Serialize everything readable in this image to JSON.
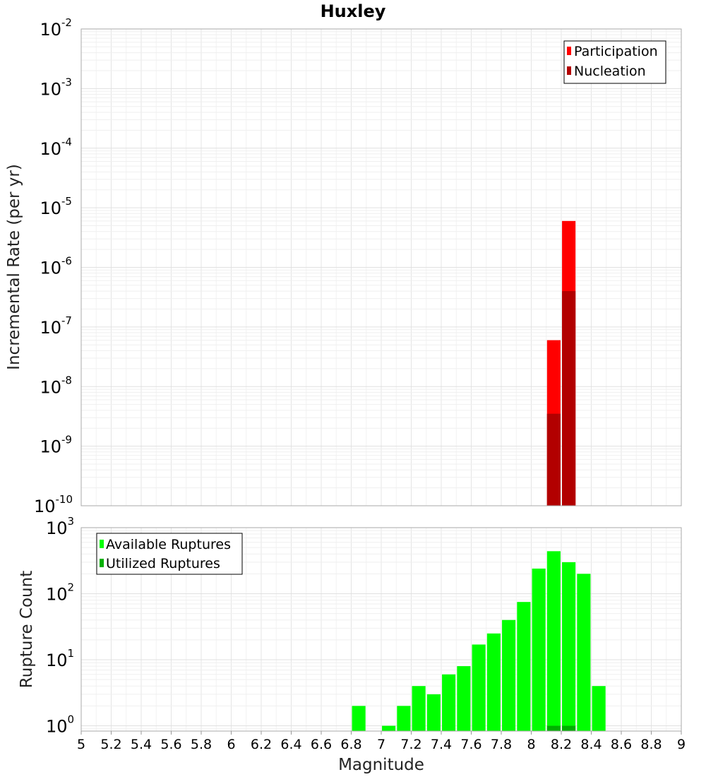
{
  "chart_data": {
    "type": "bar",
    "title": "Huxley",
    "xlabel": "Magnitude",
    "xlim": [
      5,
      9
    ],
    "x_ticks": [
      "5",
      "5.2",
      "5.4",
      "5.6",
      "5.8",
      "6",
      "6.2",
      "6.4",
      "6.6",
      "6.8",
      "7",
      "7.2",
      "7.4",
      "7.6",
      "7.8",
      "8",
      "8.2",
      "8.4",
      "8.6",
      "8.8",
      "9"
    ],
    "panels": [
      {
        "id": "rate",
        "ylabel": "Incremental Rate (per yr)",
        "yscale": "log",
        "ylim_exponent": [
          -10,
          -2
        ],
        "y_ticks": [
          {
            "base": "10",
            "exp": "-2"
          },
          {
            "base": "10",
            "exp": "-3"
          },
          {
            "base": "10",
            "exp": "-4"
          },
          {
            "base": "10",
            "exp": "-5"
          },
          {
            "base": "10",
            "exp": "-6"
          },
          {
            "base": "10",
            "exp": "-7"
          },
          {
            "base": "10",
            "exp": "-8"
          },
          {
            "base": "10",
            "exp": "-9"
          },
          {
            "base": "10",
            "exp": "-10"
          }
        ],
        "series": [
          {
            "name": "Participation",
            "color": "#ff0000",
            "x": [
              8.15,
              8.25
            ],
            "values": [
              6e-08,
              6e-06
            ]
          },
          {
            "name": "Nucleation",
            "color": "#b20000",
            "x": [
              8.15,
              8.25
            ],
            "values": [
              3.5e-09,
              4e-07
            ]
          }
        ],
        "legend": [
          "Participation",
          "Nucleation"
        ],
        "legend_position": "top-right"
      },
      {
        "id": "count",
        "ylabel": "Rupture Count",
        "yscale": "log",
        "ylim_exponent": [
          -0.08,
          3
        ],
        "y_ticks": [
          {
            "base": "10",
            "exp": "3"
          },
          {
            "base": "10",
            "exp": "2"
          },
          {
            "base": "10",
            "exp": "1"
          },
          {
            "base": "10",
            "exp": "0"
          }
        ],
        "series": [
          {
            "name": "Available Ruptures",
            "color": "#00ff00",
            "x": [
              6.85,
              7.05,
              7.15,
              7.25,
              7.35,
              7.45,
              7.55,
              7.65,
              7.75,
              7.85,
              7.95,
              8.05,
              8.15,
              8.25,
              8.35,
              8.45
            ],
            "values": [
              2,
              1,
              2,
              4,
              3,
              6,
              8,
              17,
              25,
              40,
              75,
              240,
              440,
              300,
              200,
              4
            ]
          },
          {
            "name": "Utilized Ruptures",
            "color": "#00b000",
            "x": [
              8.15,
              8.25
            ],
            "values": [
              1,
              1
            ]
          }
        ],
        "legend": [
          "Available Ruptures",
          "Utilized Ruptures"
        ],
        "legend_position": "top-left"
      }
    ]
  }
}
